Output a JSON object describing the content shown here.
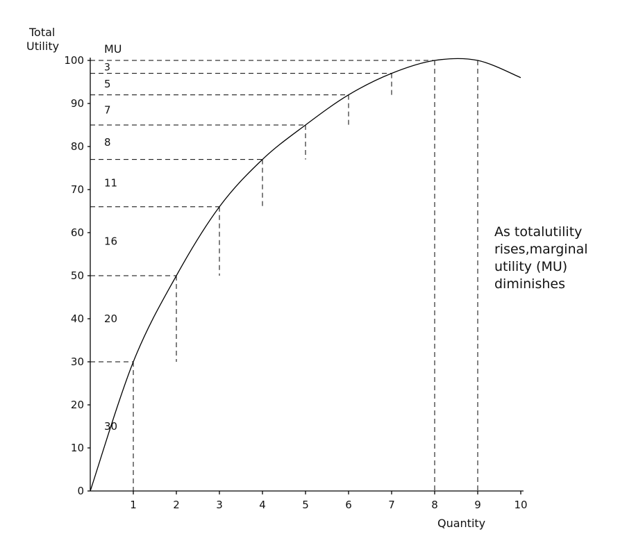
{
  "chart_data": {
    "type": "line",
    "ylabel": "Total Utility",
    "xlabel": "Quantity",
    "mu_header": "MU",
    "xlim": [
      0,
      10
    ],
    "ylim": [
      0,
      100
    ],
    "x_ticks": [
      "1",
      "2",
      "3",
      "4",
      "5",
      "6",
      "7",
      "8",
      "9",
      "10"
    ],
    "y_ticks": [
      "0",
      "10",
      "20",
      "30",
      "40",
      "50",
      "60",
      "70",
      "80",
      "90",
      "100"
    ],
    "series": [
      {
        "x": [
          0,
          1,
          2,
          3,
          4,
          5,
          6,
          7,
          8,
          9,
          10
        ],
        "values": [
          0,
          30,
          50,
          66,
          77,
          85,
          92,
          97,
          100,
          100,
          96
        ]
      }
    ],
    "marginal_utility_labels": [
      "30",
      "20",
      "16",
      "11",
      "8",
      "7",
      "5",
      "3"
    ],
    "annotation": "As total utility rises, marginal utility (MU) diminishes",
    "annotation_lines": [
      "As totalutility",
      "rises,marginal",
      "utility (MU)",
      "diminishes"
    ]
  }
}
